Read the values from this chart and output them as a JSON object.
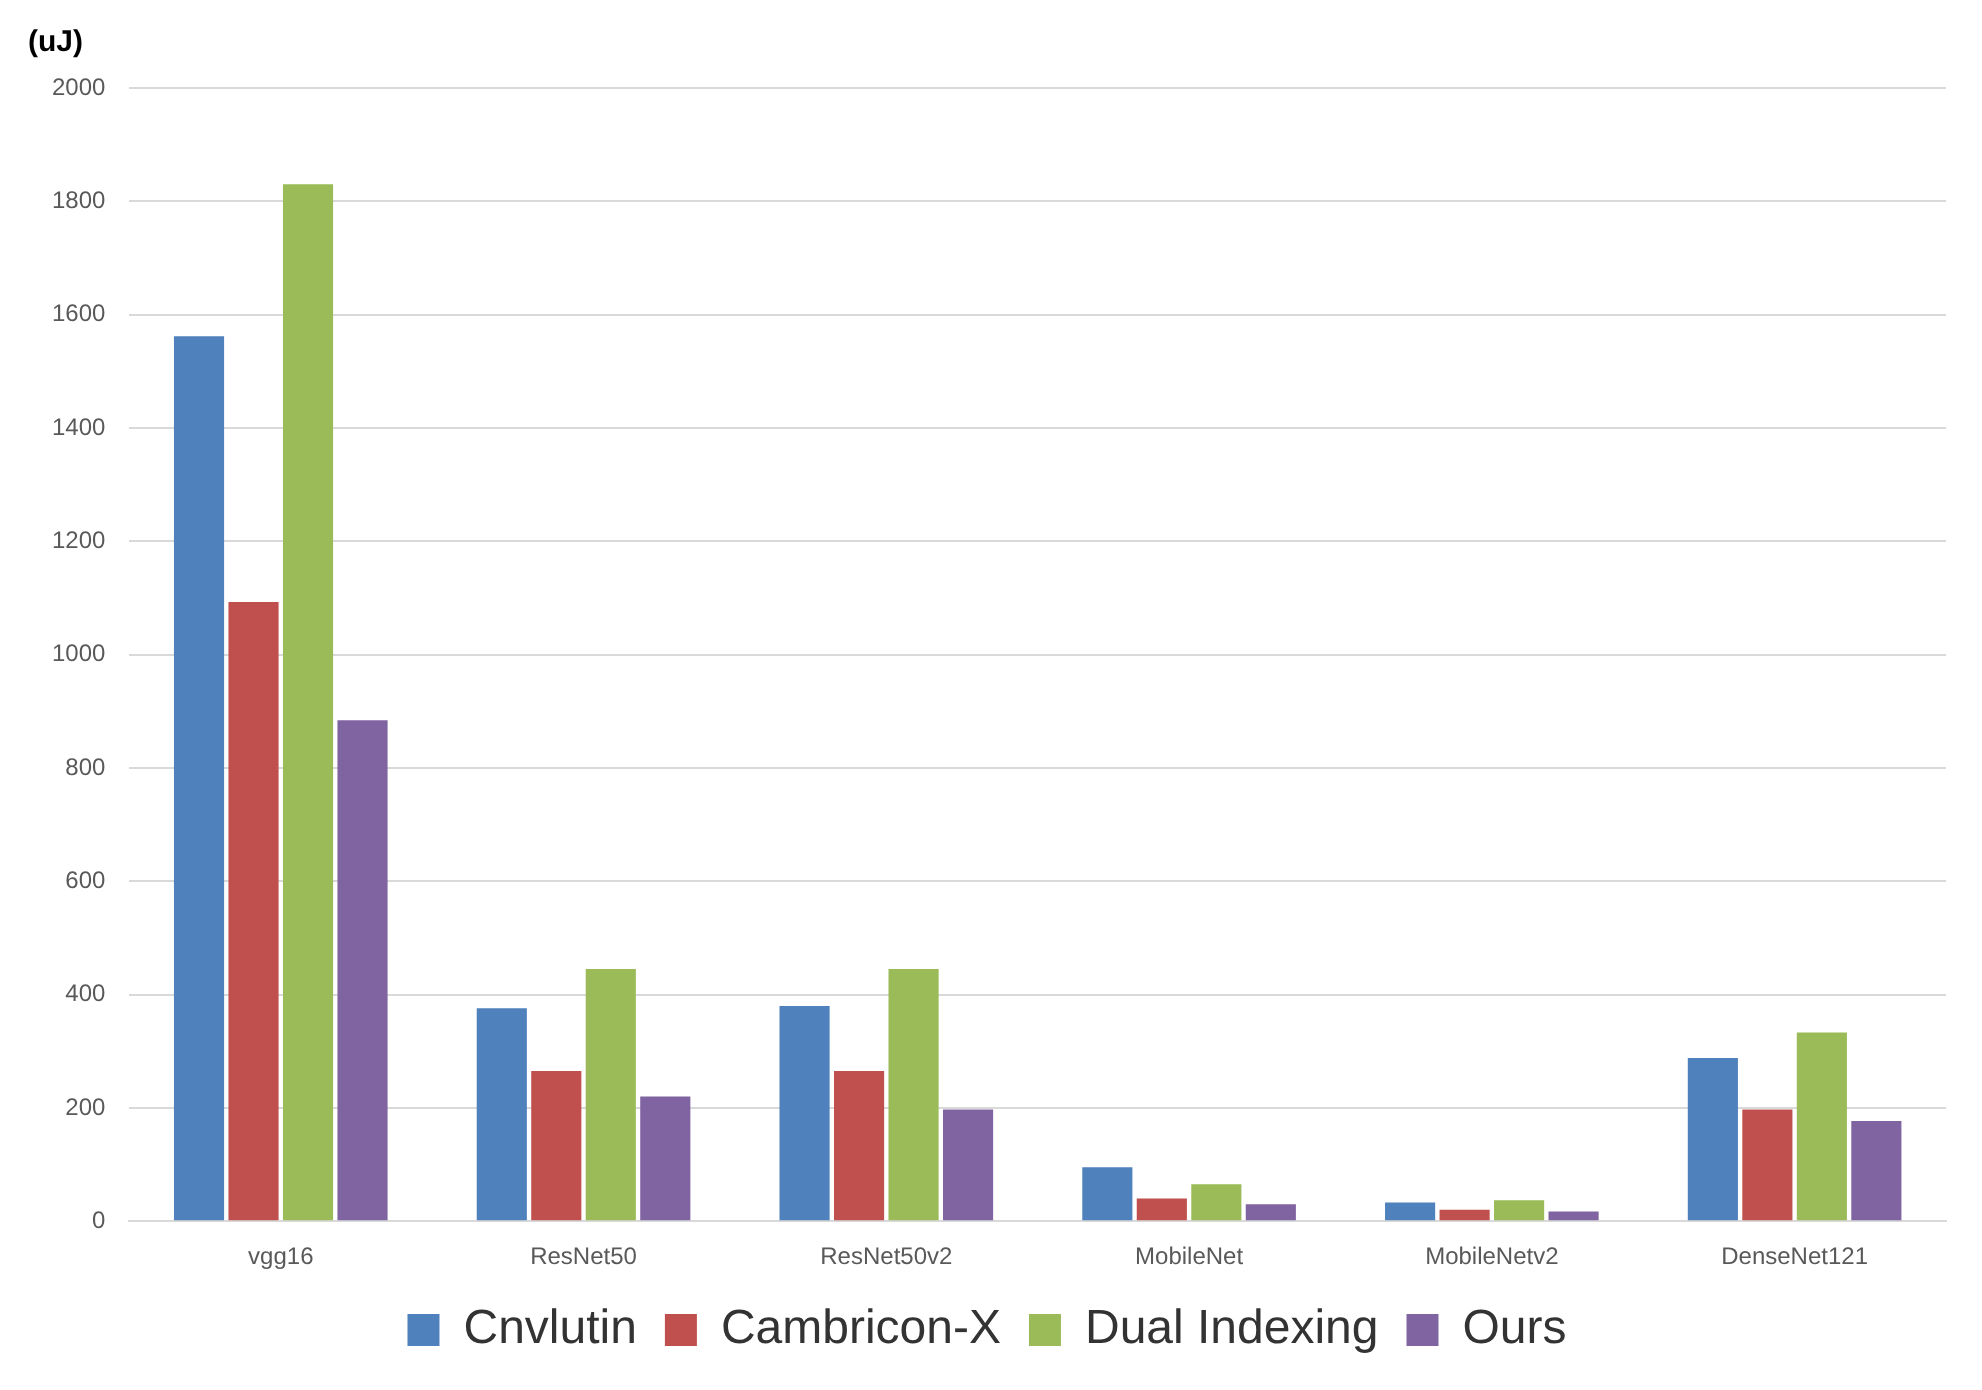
{
  "chart_data": {
    "type": "bar",
    "ylabel": "(uJ)",
    "categories": [
      "vgg16",
      "ResNet50",
      "ResNet50v2",
      "MobileNet",
      "MobileNetv2",
      "DenseNet121"
    ],
    "series": [
      {
        "name": "Cnvlutin",
        "color": "#4f81bd",
        "values": [
          1562,
          376,
          380,
          95,
          33,
          288
        ]
      },
      {
        "name": "Cambricon-X",
        "color": "#c0504d",
        "values": [
          1093,
          265,
          265,
          40,
          20,
          197
        ]
      },
      {
        "name": "Dual Indexing",
        "color": "#9bbb59",
        "values": [
          1830,
          445,
          445,
          65,
          37,
          333
        ]
      },
      {
        "name": "Ours",
        "color": "#8064a2",
        "values": [
          884,
          220,
          197,
          30,
          17,
          177
        ]
      }
    ],
    "ylim": [
      0,
      2000
    ],
    "yticks": [
      0,
      200,
      400,
      600,
      800,
      1000,
      1200,
      1400,
      1600,
      1800,
      2000
    ],
    "grid": "y",
    "legend": "bottom"
  }
}
